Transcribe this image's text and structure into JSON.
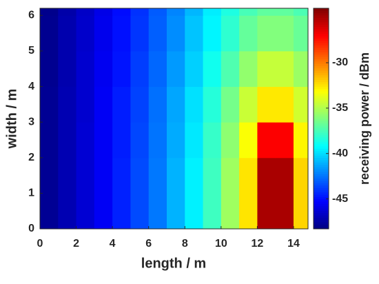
{
  "chart_data": {
    "type": "heatmap",
    "xlabel": "length / m",
    "ylabel": "width / m",
    "colorbar_label": "receiving power / dBm",
    "colormap": "jet",
    "x": [
      0,
      1,
      2,
      3,
      4,
      5,
      6,
      7,
      8,
      9,
      10,
      11,
      12,
      13,
      14,
      14.8
    ],
    "y": [
      0,
      1,
      2,
      3,
      4,
      5,
      6,
      6.2
    ],
    "z": [
      [
        -47.8,
        -47.1,
        -46.3,
        -45.5,
        -44.5,
        -43.5,
        -42.4,
        -41.0,
        -39.5,
        -37.7,
        -35.4,
        -32.5,
        -25,
        -25,
        -32.1
      ],
      [
        -47.8,
        -47.1,
        -46.3,
        -45.5,
        -44.5,
        -43.5,
        -42.4,
        -41.0,
        -39.5,
        -37.7,
        -35.4,
        -32.5,
        -25,
        -25,
        -32.1
      ],
      [
        -47.8,
        -47.1,
        -46.3,
        -45.5,
        -44.6,
        -43.6,
        -42.5,
        -41.2,
        -39.7,
        -37.9,
        -35.8,
        -33.2,
        -27,
        -27,
        -32.9
      ],
      [
        -47.8,
        -47.1,
        -46.4,
        -45.5,
        -44.6,
        -43.7,
        -42.6,
        -41.3,
        -39.9,
        -38.3,
        -36.4,
        -34.4,
        -32.6,
        -32.6,
        -34.2
      ],
      [
        -47.9,
        -47.2,
        -46.4,
        -45.6,
        -44.8,
        -43.8,
        -42.8,
        -41.6,
        -40.3,
        -38.8,
        -37.3,
        -35.7,
        -34.5,
        -34.5,
        -35.5
      ],
      [
        -47.9,
        -47.2,
        -46.5,
        -45.7,
        -44.9,
        -44.0,
        -43.0,
        -41.9,
        -40.6,
        -39.4,
        -38.1,
        -36.8,
        -36.1,
        -36.1,
        -36.7
      ],
      [
        -48.0,
        -47.3,
        -46.6,
        -45.8,
        -45.0,
        -44.1,
        -43.1,
        -42.1,
        -40.9,
        -39.6,
        -38.5,
        -37.5,
        -36.9,
        -36.9,
        -37.4
      ]
    ],
    "xlim": [
      0,
      14.8
    ],
    "xticks": [
      0,
      2,
      4,
      6,
      8,
      10,
      12,
      14
    ],
    "ylim": [
      0,
      6.2
    ],
    "yticks": [
      0,
      1,
      2,
      3,
      4,
      5,
      6
    ],
    "clim": [
      -48.3,
      -24
    ],
    "cticks": [
      -45,
      -40,
      -35,
      -30
    ]
  }
}
